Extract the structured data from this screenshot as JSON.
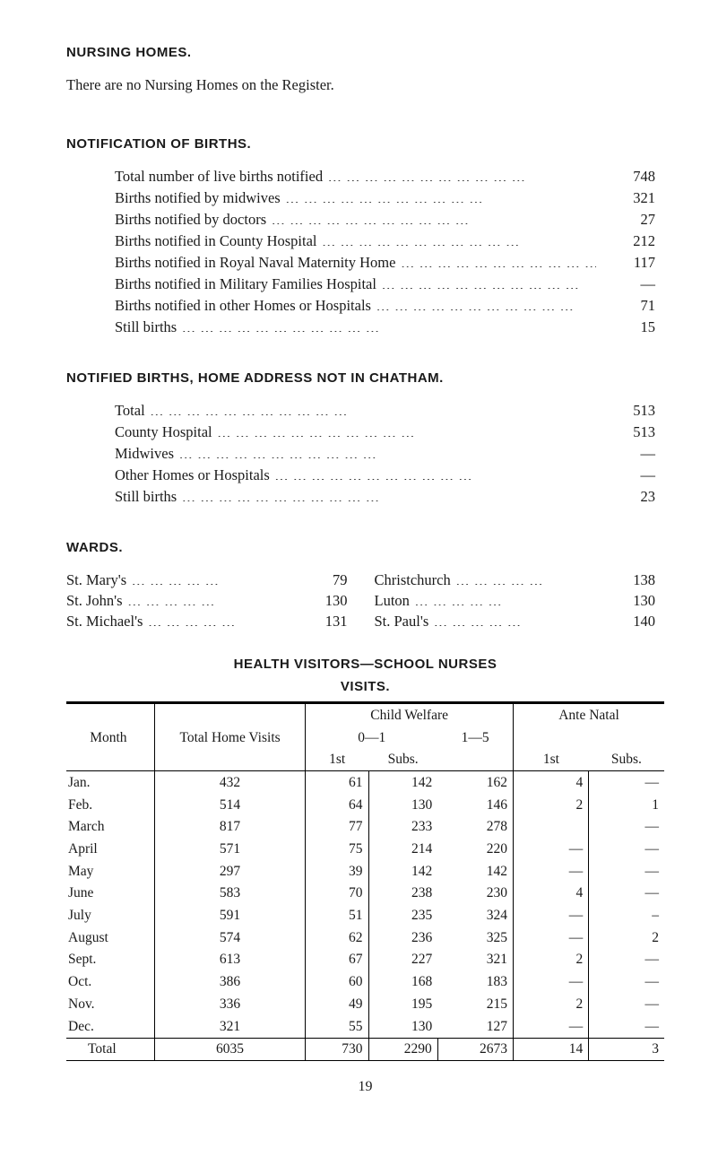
{
  "page_number": "19",
  "nursing_homes": {
    "heading": "NURSING HOMES.",
    "text": "There are no Nursing Homes on the Register."
  },
  "notification_of_births": {
    "heading": "NOTIFICATION OF BIRTHS.",
    "rows": [
      {
        "label": "Total number of live births notified",
        "value": "748"
      },
      {
        "label": "Births notified by midwives",
        "value": "321"
      },
      {
        "label": "Births notified by doctors",
        "value": "27"
      },
      {
        "label": "Births notified in County Hospital",
        "value": "212"
      },
      {
        "label": "Births notified in Royal Naval Maternity Home",
        "value": "117"
      },
      {
        "label": "Births notified in Military Families Hospital",
        "value": "—"
      },
      {
        "label": "Births notified in other Homes or Hospitals",
        "value": "71"
      },
      {
        "label": "Still births",
        "value": "15"
      }
    ]
  },
  "notified_births_not_in_chatham": {
    "heading": "NOTIFIED BIRTHS, HOME ADDRESS NOT IN CHATHAM.",
    "rows": [
      {
        "label": "Total",
        "value": "513"
      },
      {
        "label": "County Hospital",
        "value": "513"
      },
      {
        "label": "Midwives",
        "value": "—"
      },
      {
        "label": "Other Homes or Hospitals",
        "value": "—"
      },
      {
        "label": "Still births",
        "value": "23"
      }
    ]
  },
  "wards": {
    "heading": "WARDS.",
    "left": [
      {
        "label": "St. Mary's",
        "value": "79"
      },
      {
        "label": "St. John's",
        "value": "130"
      },
      {
        "label": "St. Michael's",
        "value": "131"
      }
    ],
    "right": [
      {
        "label": "Christchurch",
        "value": "138"
      },
      {
        "label": "Luton",
        "value": "130"
      },
      {
        "label": "St. Paul's",
        "value": "140"
      }
    ]
  },
  "visits_table": {
    "heading1": "HEALTH VISITORS—SCHOOL NURSES",
    "heading2": "VISITS.",
    "header": {
      "month": "Month",
      "thv": "Total Home Visits",
      "cw": "Child Welfare",
      "cw_sub1": "0—1",
      "cw_sub2": "1—5",
      "cw_1st": "1st",
      "cw_subs": "Subs.",
      "an": "Ante Natal",
      "an_1st": "1st",
      "an_subs": "Subs."
    },
    "rows": [
      {
        "month": "Jan.",
        "thv": "432",
        "c1": "61",
        "c2": "142",
        "c3": "162",
        "a1": "4",
        "a2": "—"
      },
      {
        "month": "Feb.",
        "thv": "514",
        "c1": "64",
        "c2": "130",
        "c3": "146",
        "a1": "2",
        "a2": "1"
      },
      {
        "month": "March",
        "thv": "817",
        "c1": "77",
        "c2": "233",
        "c3": "278",
        "a1": "",
        "a2": "—"
      },
      {
        "month": "April",
        "thv": "571",
        "c1": "75",
        "c2": "214",
        "c3": "220",
        "a1": "—",
        "a2": "—"
      },
      {
        "month": "May",
        "thv": "297",
        "c1": "39",
        "c2": "142",
        "c3": "142",
        "a1": "—",
        "a2": "—"
      },
      {
        "month": "June",
        "thv": "583",
        "c1": "70",
        "c2": "238",
        "c3": "230",
        "a1": "4",
        "a2": "—"
      },
      {
        "month": "July",
        "thv": "591",
        "c1": "51",
        "c2": "235",
        "c3": "324",
        "a1": "—",
        "a2": "–"
      },
      {
        "month": "August",
        "thv": "574",
        "c1": "62",
        "c2": "236",
        "c3": "325",
        "a1": "—",
        "a2": "2"
      },
      {
        "month": "Sept.",
        "thv": "613",
        "c1": "67",
        "c2": "227",
        "c3": "321",
        "a1": "2",
        "a2": "—"
      },
      {
        "month": "Oct.",
        "thv": "386",
        "c1": "60",
        "c2": "168",
        "c3": "183",
        "a1": "—",
        "a2": "—"
      },
      {
        "month": "Nov.",
        "thv": "336",
        "c1": "49",
        "c2": "195",
        "c3": "215",
        "a1": "2",
        "a2": "—"
      },
      {
        "month": "Dec.",
        "thv": "321",
        "c1": "55",
        "c2": "130",
        "c3": "127",
        "a1": "—",
        "a2": "—"
      }
    ],
    "total": {
      "month": "Total",
      "thv": "6035",
      "c1": "730",
      "c2": "2290",
      "c3": "2673",
      "a1": "14",
      "a2": "3"
    }
  }
}
